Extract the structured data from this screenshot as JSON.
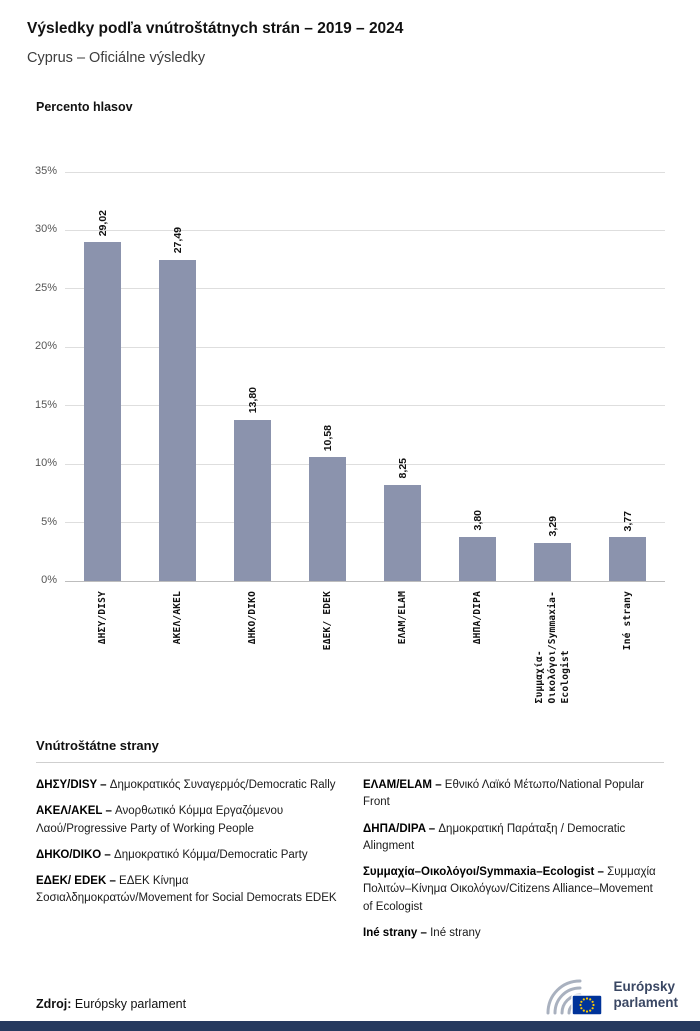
{
  "header": {
    "title": "Výsledky podľa vnútroštátnych strán – 2019 – 2024",
    "subtitle": "Cyprus – Oficiálne výsledky"
  },
  "chart_data": {
    "type": "bar",
    "title": "Percento hlasov",
    "xlabel": "",
    "ylabel": "Percento hlasov",
    "categories": [
      "ΔΗΣΥ/DISY",
      "ΑΚΕΛ/AKEL",
      "ΔΗΚΟ/DIKO",
      "ΕΔΕΚ/ EDEK",
      "ΕΛΑΜ/ELAM",
      "ΔΗΠΑ/DIPA",
      "Συμμαχία-\nΟικολόγοι/Symmaxia-\nEcologist",
      "Iné strany"
    ],
    "values": [
      29.02,
      27.49,
      13.8,
      10.58,
      8.25,
      3.8,
      3.29,
      3.77
    ],
    "value_labels": [
      "29,02",
      "27,49",
      "13,80",
      "10,58",
      "8,25",
      "3,80",
      "3,29",
      "3,77"
    ],
    "ylim": [
      0,
      35
    ],
    "yticks": [
      "0%",
      "5%",
      "10%",
      "15%",
      "20%",
      "25%",
      "30%",
      "35%"
    ],
    "grid": true,
    "legend_position": "none",
    "bar_color": "#8B93AD"
  },
  "legend": {
    "heading": "Vnútroštátne strany",
    "columns": [
      [
        {
          "term": "ΔΗΣΥ/DISY –",
          "desc": "Δημοκρατικός Συναγερμός/Democratic Rally"
        },
        {
          "term": "ΑΚΕΛ/AKEL –",
          "desc": "Ανορθωτικό Κόμμα Εργαζόμενου Λαού/Progressive Party of Working People"
        },
        {
          "term": "ΔΗΚΟ/DIKO –",
          "desc": "Δημοκρατικό Κόμμα/Democratic Party"
        },
        {
          "term": "ΕΔΕΚ/ EDEK –",
          "desc": "ΕΔΕΚ Κίνημα Σοσιαλδημοκρατών/Movement for Social Democrats EDEK"
        }
      ],
      [
        {
          "term": "ΕΛΑΜ/ELAM –",
          "desc": "Εθνικό Λαϊκό Μέτωπο/National Popular Front"
        },
        {
          "term": "ΔΗΠΑ/DIPA –",
          "desc": "Δημοκρατική Παράταξη / Democratic Alingment"
        },
        {
          "term": "Συμμαχία–Οικολόγοι/Symmaxia–Ecologist –",
          "desc": "Συμμαχία Πολιτών–Κίνημα Οικολόγων/Citizens Alliance–Movement of Ecologist"
        },
        {
          "term": "Iné strany –",
          "desc": "Iné strany"
        }
      ]
    ]
  },
  "footer": {
    "source_label": "Zdroj:",
    "source_value": "Európsky parlament",
    "logo_line1": "Európsky",
    "logo_line2": "parlament"
  },
  "colors": {
    "bar": "#8B93AD",
    "bottom_bar": "#263A5F",
    "logo_text": "#3A4763",
    "eu_flag_blue": "#003399",
    "eu_star_yellow": "#FFCC00"
  }
}
